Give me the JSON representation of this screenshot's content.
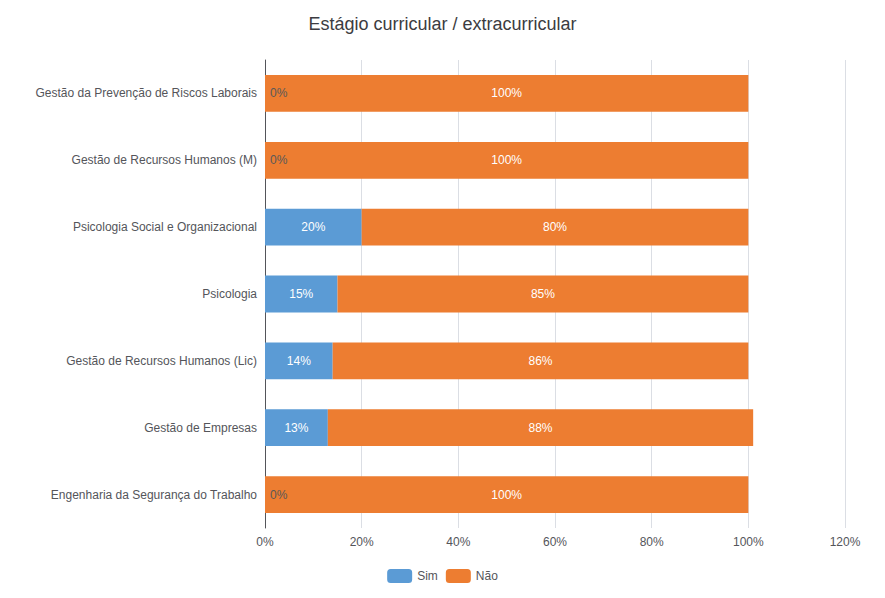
{
  "chart_data": {
    "type": "bar",
    "title": "Estágio curricular / extracurricular",
    "orientation": "horizontal",
    "stacked": true,
    "categories": [
      "Engenharia da Segurança do Trabalho",
      "Gestão de Empresas",
      "Gestão de Recursos Humanos (Lic)",
      "Psicologia",
      "Psicologia Social e Organizacional",
      "Gestão de Recursos Humanos (M)",
      "Gestão da Prevenção de Riscos Laborais"
    ],
    "series": [
      {
        "name": "Sim",
        "color": "#5B9BD5",
        "values": [
          0,
          13,
          14,
          15,
          20,
          0,
          0
        ],
        "value_labels": [
          "0%",
          "13%",
          "14%",
          "15%",
          "20%",
          "0%",
          "0%"
        ]
      },
      {
        "name": "Não",
        "color": "#ED7D31",
        "values": [
          100,
          88,
          86,
          85,
          80,
          100,
          100
        ],
        "value_labels": [
          "100%",
          "88%",
          "86%",
          "85%",
          "80%",
          "100%",
          "100%"
        ]
      }
    ],
    "xlim": [
      0,
      120
    ],
    "xticks": [
      {
        "value": 0,
        "label": "0%"
      },
      {
        "value": 20,
        "label": "20%"
      },
      {
        "value": 40,
        "label": "40%"
      },
      {
        "value": 60,
        "label": "60%"
      },
      {
        "value": 80,
        "label": "80%"
      },
      {
        "value": 100,
        "label": "100%"
      },
      {
        "value": 120,
        "label": "120%"
      }
    ],
    "grid": true,
    "legend": "bottom",
    "data_labels": true
  }
}
